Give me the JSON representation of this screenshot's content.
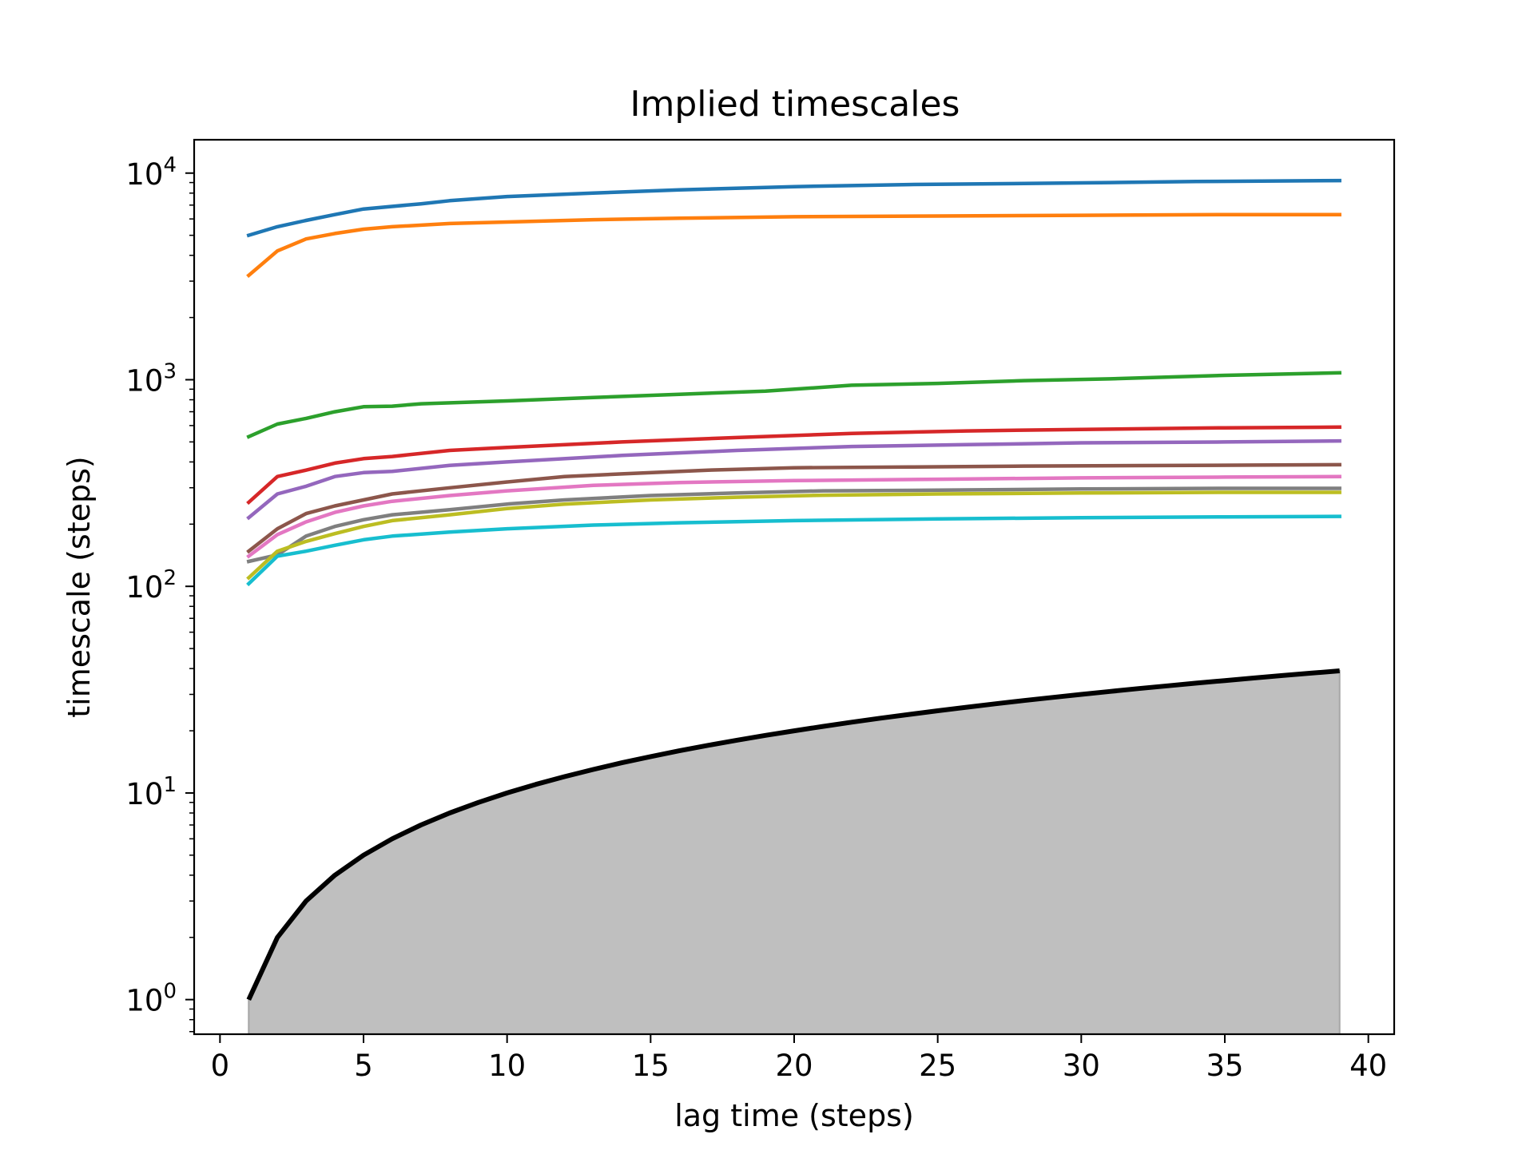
{
  "chart_data": {
    "type": "line",
    "title": "Implied timescales",
    "xlabel": "lag time (steps)",
    "ylabel": "timescale (steps)",
    "xlim": [
      -0.9,
      40.9
    ],
    "ylim": [
      0.68,
      14500
    ],
    "yscale": "log",
    "grid": false,
    "legend": "none",
    "x_ticks": [
      0,
      5,
      10,
      15,
      20,
      25,
      30,
      35,
      40
    ],
    "x_tick_labels": [
      "0",
      "5",
      "10",
      "15",
      "20",
      "25",
      "30",
      "35",
      "40"
    ],
    "y_ticks": [
      1,
      10,
      100,
      1000,
      10000
    ],
    "y_tick_labels": [
      {
        "base": "10",
        "exp": "0"
      },
      {
        "base": "10",
        "exp": "1"
      },
      {
        "base": "10",
        "exp": "2"
      },
      {
        "base": "10",
        "exp": "3"
      },
      {
        "base": "10",
        "exp": "4"
      }
    ],
    "series": [
      {
        "color": "#1f77b4",
        "x": [
          1,
          2,
          3,
          4,
          5,
          7,
          8,
          10,
          13,
          16,
          20,
          24,
          28,
          31,
          34,
          39
        ],
        "values": [
          5000,
          5500,
          5900,
          6300,
          6700,
          7100,
          7350,
          7700,
          8000,
          8300,
          8600,
          8800,
          8900,
          9000,
          9100,
          9200
        ]
      },
      {
        "color": "#ff7f0e",
        "x": [
          1,
          2,
          3,
          4,
          5,
          6,
          8,
          10,
          13,
          16,
          20,
          25,
          30,
          35,
          39
        ],
        "values": [
          3200,
          4200,
          4800,
          5100,
          5350,
          5500,
          5700,
          5800,
          5950,
          6050,
          6150,
          6200,
          6250,
          6300,
          6300
        ]
      },
      {
        "color": "#2ca02c",
        "x": [
          1,
          2,
          3,
          4,
          5,
          6,
          7,
          10,
          13,
          16,
          19,
          22,
          25,
          28,
          31,
          35,
          39
        ],
        "values": [
          530,
          610,
          650,
          700,
          740,
          745,
          765,
          790,
          820,
          850,
          880,
          940,
          960,
          990,
          1010,
          1050,
          1080
        ]
      },
      {
        "color": "#d62728",
        "x": [
          1,
          2,
          3,
          4,
          5,
          6,
          8,
          10,
          14,
          18,
          22,
          26,
          30,
          35,
          39
        ],
        "values": [
          255,
          340,
          365,
          395,
          415,
          425,
          455,
          470,
          500,
          525,
          550,
          565,
          575,
          585,
          590
        ]
      },
      {
        "color": "#9467bd",
        "x": [
          1,
          2,
          3,
          4,
          5,
          6,
          8,
          10,
          14,
          18,
          22,
          26,
          30,
          35,
          39
        ],
        "values": [
          215,
          280,
          305,
          340,
          355,
          360,
          385,
          400,
          430,
          455,
          475,
          485,
          495,
          500,
          505
        ]
      },
      {
        "color": "#8c564b",
        "x": [
          1,
          2,
          3,
          4,
          5,
          6,
          8,
          10,
          12,
          14,
          17,
          20,
          24,
          28,
          32,
          36,
          39
        ],
        "values": [
          148,
          190,
          225,
          245,
          262,
          280,
          300,
          320,
          340,
          350,
          365,
          375,
          378,
          382,
          384,
          386,
          388
        ]
      },
      {
        "color": "#e377c2",
        "x": [
          1,
          2,
          3,
          4,
          5,
          6,
          8,
          10,
          13,
          16,
          20,
          25,
          30,
          35,
          39
        ],
        "values": [
          140,
          178,
          205,
          228,
          245,
          258,
          275,
          290,
          308,
          318,
          325,
          330,
          335,
          338,
          340
        ]
      },
      {
        "color": "#7f7f7f",
        "x": [
          1,
          2,
          3,
          4,
          5,
          6,
          8,
          10,
          12,
          15,
          18,
          21,
          25,
          30,
          35,
          39
        ],
        "values": [
          132,
          142,
          175,
          195,
          210,
          222,
          235,
          250,
          262,
          275,
          283,
          290,
          292,
          296,
          298,
          298
        ]
      },
      {
        "color": "#bcbd22",
        "x": [
          1,
          2,
          3,
          4,
          5,
          6,
          8,
          10,
          12,
          15,
          18,
          21,
          25,
          30,
          35,
          39
        ],
        "values": [
          110,
          148,
          165,
          180,
          195,
          208,
          222,
          238,
          250,
          262,
          270,
          276,
          280,
          283,
          285,
          285
        ]
      },
      {
        "color": "#17becf",
        "x": [
          1,
          2,
          3,
          4,
          5,
          6,
          8,
          10,
          13,
          16,
          20,
          25,
          30,
          35,
          39
        ],
        "values": [
          103,
          140,
          148,
          158,
          168,
          175,
          183,
          190,
          198,
          203,
          208,
          212,
          215,
          217,
          218
        ]
      },
      {
        "color": "#000000",
        "x": [
          1,
          2,
          3,
          4,
          5,
          6,
          7,
          8,
          9,
          10,
          11,
          12,
          13,
          14,
          15,
          16,
          17,
          18,
          19,
          20,
          21,
          22,
          23,
          24,
          25,
          26,
          27,
          28,
          29,
          30,
          31,
          32,
          33,
          34,
          35,
          36,
          37,
          38,
          39
        ],
        "values": [
          1,
          2,
          3,
          4,
          5,
          6,
          7,
          8,
          9,
          10,
          11,
          12,
          13,
          14,
          15,
          16,
          17,
          18,
          19,
          20,
          21,
          22,
          23,
          24,
          25,
          26,
          27,
          28,
          29,
          30,
          31,
          32,
          33,
          34,
          35,
          36,
          37,
          38,
          39
        ],
        "fill_below": true,
        "fill_color": "#bfbfbf"
      }
    ]
  }
}
